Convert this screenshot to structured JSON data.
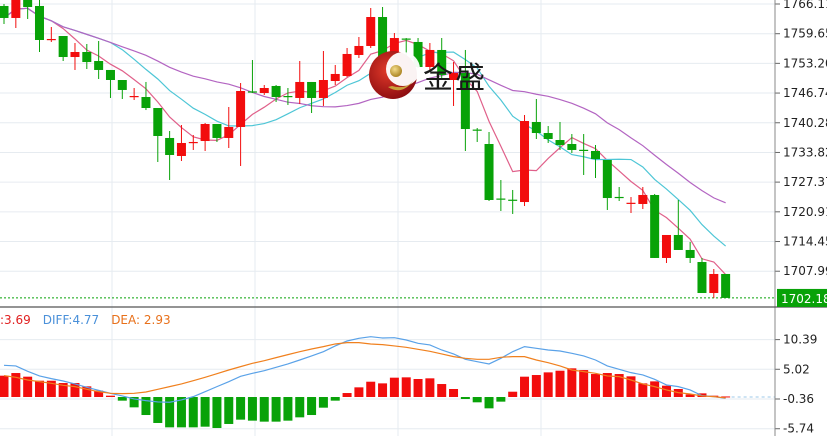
{
  "watermark": {
    "logo_text": "金盛"
  },
  "colors": {
    "up": "#f20d0d",
    "down": "#08a208",
    "ma5": "#e0608a",
    "ma10": "#4ec6d6",
    "ma20": "#b365c2",
    "diff": "#5aa2e8",
    "dea": "#f0801e",
    "last_price_bg": "#08a208"
  },
  "macd_legend": {
    "macd": ":3.69",
    "diff": "DIFF:4.77",
    "dea": "DEA: 2.93"
  },
  "chart_data": [
    {
      "type": "candlestick",
      "price_axis": {
        "ticks": [
          "1766.11",
          "1759.65",
          "1753.20",
          "1746.74",
          "1740.28",
          "1733.82",
          "1727.37",
          "1720.91",
          "1714.45",
          "1707.99"
        ],
        "range": [
          1700.5,
          1767.0
        ],
        "last_price": "1702.18",
        "grid": true
      },
      "moving_averages": [
        "MA5",
        "MA10",
        "MA20"
      ],
      "ohlc": [
        [
          1765.68,
          1766.11,
          1761.76,
          1763.07
        ],
        [
          1763.07,
          1766.98,
          1760.89,
          1766.98
        ],
        [
          1766.98,
          1766.98,
          1762.85,
          1765.46
        ],
        [
          1765.68,
          1766.98,
          1755.67,
          1758.28
        ],
        [
          1758.28,
          1761.11,
          1757.85,
          1758.5
        ],
        [
          1759.15,
          1759.15,
          1753.71,
          1754.58
        ],
        [
          1754.58,
          1757.63,
          1751.76,
          1755.67
        ],
        [
          1755.67,
          1757.41,
          1751.97,
          1753.49
        ],
        [
          1753.71,
          1758.06,
          1749.8,
          1751.76
        ],
        [
          1751.76,
          1751.76,
          1745.67,
          1749.58
        ],
        [
          1749.58,
          1749.58,
          1745.45,
          1747.41
        ],
        [
          1746.1,
          1747.84,
          1745.23,
          1746.1
        ],
        [
          1745.88,
          1749.15,
          1743.05,
          1743.49
        ],
        [
          1743.49,
          1743.49,
          1731.75,
          1737.4
        ],
        [
          1736.97,
          1738.49,
          1727.83,
          1733.27
        ],
        [
          1733.05,
          1739.79,
          1731.96,
          1735.88
        ],
        [
          1736.0,
          1737.62,
          1734.36,
          1736.1
        ],
        [
          1736.31,
          1740.23,
          1734.14,
          1740.01
        ],
        [
          1740.01,
          1740.01,
          1736.1,
          1736.97
        ],
        [
          1736.97,
          1743.71,
          1734.79,
          1739.36
        ],
        [
          1739.36,
          1748.93,
          1730.88,
          1747.19
        ],
        [
          1747.1,
          1753.93,
          1746.75,
          1746.97
        ],
        [
          1746.75,
          1748.49,
          1746.32,
          1747.84
        ],
        [
          1748.28,
          1748.49,
          1744.8,
          1745.88
        ],
        [
          1746.1,
          1747.84,
          1744.15,
          1746.0
        ],
        [
          1745.67,
          1753.71,
          1744.36,
          1749.15
        ],
        [
          1749.15,
          1749.15,
          1742.4,
          1745.67
        ],
        [
          1745.67,
          1755.89,
          1743.93,
          1749.58
        ],
        [
          1749.36,
          1752.84,
          1748.49,
          1750.89
        ],
        [
          1750.45,
          1756.54,
          1750.23,
          1755.24
        ],
        [
          1755.02,
          1758.93,
          1754.37,
          1756.98
        ],
        [
          1756.98,
          1765.24,
          1756.54,
          1763.28
        ],
        [
          1763.28,
          1765.46,
          1753.06,
          1753.49
        ],
        [
          1754.58,
          1759.8,
          1753.06,
          1758.71
        ],
        [
          1758.6,
          1758.71,
          1754.8,
          1758.5
        ],
        [
          1757.85,
          1758.71,
          1752.19,
          1752.41
        ],
        [
          1752.41,
          1757.63,
          1751.32,
          1756.11
        ],
        [
          1756.11,
          1758.71,
          1750.02,
          1750.67
        ],
        [
          1749.58,
          1753.49,
          1743.93,
          1751.1
        ],
        [
          1751.1,
          1756.11,
          1734.14,
          1738.92
        ],
        [
          1738.8,
          1739.14,
          1736.1,
          1738.7
        ],
        [
          1735.66,
          1738.27,
          1723.26,
          1723.48
        ],
        [
          1723.8,
          1727.83,
          1721.09,
          1723.7
        ],
        [
          1723.55,
          1725.66,
          1720.44,
          1723.45
        ],
        [
          1723.04,
          1741.97,
          1722.17,
          1740.66
        ],
        [
          1740.45,
          1745.45,
          1736.75,
          1738.05
        ],
        [
          1738.05,
          1739.57,
          1735.88,
          1736.75
        ],
        [
          1736.53,
          1740.45,
          1734.36,
          1735.44
        ],
        [
          1735.66,
          1737.83,
          1733.7,
          1734.36
        ],
        [
          1734.4,
          1737.83,
          1728.92,
          1734.3
        ],
        [
          1734.14,
          1735.44,
          1728.27,
          1732.4
        ],
        [
          1732.18,
          1732.18,
          1721.31,
          1723.91
        ],
        [
          1724.15,
          1726.31,
          1723.26,
          1724.05
        ],
        [
          1722.78,
          1724.13,
          1720.65,
          1722.88
        ],
        [
          1722.61,
          1726.31,
          1721.52,
          1724.57
        ],
        [
          1724.57,
          1724.79,
          1710.87,
          1710.87
        ],
        [
          1710.87,
          1715.87,
          1709.78,
          1715.87
        ],
        [
          1715.87,
          1723.48,
          1712.61,
          1712.61
        ],
        [
          1712.61,
          1714.35,
          1709.78,
          1710.87
        ],
        [
          1709.99,
          1710.87,
          1703.25,
          1703.25
        ],
        [
          1703.25,
          1708.47,
          1702.17,
          1707.39
        ],
        [
          1707.39,
          1707.39,
          1702.18,
          1702.18
        ]
      ]
    },
    {
      "type": "bar+line",
      "indicator": "MACD",
      "axis": {
        "ticks": [
          "10.39",
          "5.02",
          "-0.36",
          "-5.74"
        ],
        "range": [
          -6.5,
          11.5
        ]
      },
      "series": [
        {
          "name": "MACD",
          "values": [
            3.86,
            4.34,
            3.68,
            2.95,
            2.95,
            2.53,
            2.53,
            1.93,
            1.15,
            0.24,
            -0.66,
            -1.87,
            -3.26,
            -4.7,
            -5.49,
            -5.49,
            -5.49,
            -5.37,
            -5.61,
            -4.88,
            -4.1,
            -4.28,
            -4.46,
            -4.46,
            -4.28,
            -3.68,
            -3.26,
            -1.93,
            -0.66,
            0.72,
            1.75,
            2.77,
            2.47,
            3.5,
            3.56,
            3.26,
            3.38,
            2.35,
            1.45,
            -0.36,
            -0.96,
            -2.05,
            -0.84,
            0.96,
            3.68,
            3.98,
            4.46,
            4.76,
            5.19,
            4.88,
            4.16,
            4.34,
            4.16,
            3.74,
            2.47,
            2.83,
            2.05,
            1.45,
            0.48,
            0.66,
            0.24,
            0.1
          ]
        },
        {
          "name": "DIFF",
          "values": [
            5.74,
            5.62,
            4.65,
            3.81,
            3.33,
            2.9,
            2.36,
            1.76,
            1.22,
            0.67,
            0.19,
            -0.35,
            -0.65,
            -0.89,
            -0.95,
            -0.53,
            0.07,
            0.97,
            1.88,
            2.78,
            3.75,
            4.29,
            4.77,
            5.38,
            5.98,
            6.7,
            7.43,
            8.21,
            9.24,
            10.14,
            10.62,
            10.92,
            10.68,
            10.74,
            10.32,
            9.72,
            9.42,
            8.51,
            7.79,
            6.82,
            6.4,
            5.98,
            7.01,
            8.21,
            9.12,
            8.81,
            8.51,
            8.33,
            7.91,
            7.43,
            6.7,
            5.62,
            5.01,
            4.41,
            3.99,
            3.21,
            2.18,
            1.88,
            1.28,
            0.25,
            0.07,
            -0.23
          ]
        },
        {
          "name": "DEA",
          "values": [
            3.87,
            3.57,
            3.08,
            2.78,
            2.48,
            2.12,
            1.88,
            1.4,
            0.97,
            0.67,
            0.61,
            0.67,
            0.91,
            1.4,
            1.88,
            2.36,
            2.96,
            3.57,
            4.23,
            4.89,
            5.5,
            6.1,
            6.58,
            7.13,
            7.67,
            8.21,
            8.69,
            9.12,
            9.6,
            9.84,
            9.84,
            9.6,
            9.48,
            9.24,
            9.0,
            8.63,
            8.27,
            7.79,
            7.31,
            7.0,
            6.82,
            6.82,
            7.19,
            7.31,
            7.31,
            6.7,
            6.22,
            5.62,
            4.89,
            4.59,
            4.29,
            3.81,
            3.69,
            3.08,
            2.36,
            1.88,
            1.28,
            0.79,
            0.55,
            0.19,
            0.07,
            -0.17
          ]
        }
      ]
    }
  ]
}
